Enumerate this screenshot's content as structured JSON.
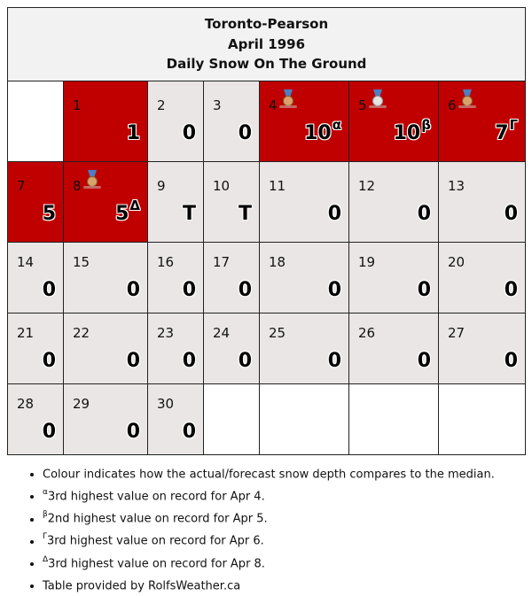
{
  "header": {
    "station": "Toronto-Pearson",
    "period": "April 1996",
    "subtitle": "Daily Snow On The Ground"
  },
  "colors": {
    "above_median": "#c00000",
    "normal": "#ebe6e6",
    "header_bg": "#f2f2f2"
  },
  "days": [
    {
      "day": "1",
      "value": "1",
      "sup": "",
      "red": true,
      "medal": ""
    },
    {
      "day": "2",
      "value": "0",
      "sup": "",
      "red": false,
      "medal": ""
    },
    {
      "day": "3",
      "value": "0",
      "sup": "",
      "red": false,
      "medal": ""
    },
    {
      "day": "4",
      "value": "10",
      "sup": "α",
      "red": true,
      "medal": "bronze-medal-icon"
    },
    {
      "day": "5",
      "value": "10",
      "sup": "β",
      "red": true,
      "medal": "silver-medal-icon"
    },
    {
      "day": "6",
      "value": "7",
      "sup": "Γ",
      "red": true,
      "medal": "bronze-medal-icon"
    },
    {
      "day": "7",
      "value": "5",
      "sup": "",
      "red": true,
      "medal": ""
    },
    {
      "day": "8",
      "value": "5",
      "sup": "Δ",
      "red": true,
      "medal": "bronze-medal-icon"
    },
    {
      "day": "9",
      "value": "T",
      "sup": "",
      "red": false,
      "medal": ""
    },
    {
      "day": "10",
      "value": "T",
      "sup": "",
      "red": false,
      "medal": ""
    },
    {
      "day": "11",
      "value": "0",
      "sup": "",
      "red": false,
      "medal": ""
    },
    {
      "day": "12",
      "value": "0",
      "sup": "",
      "red": false,
      "medal": ""
    },
    {
      "day": "13",
      "value": "0",
      "sup": "",
      "red": false,
      "medal": ""
    },
    {
      "day": "14",
      "value": "0",
      "sup": "",
      "red": false,
      "medal": ""
    },
    {
      "day": "15",
      "value": "0",
      "sup": "",
      "red": false,
      "medal": ""
    },
    {
      "day": "16",
      "value": "0",
      "sup": "",
      "red": false,
      "medal": ""
    },
    {
      "day": "17",
      "value": "0",
      "sup": "",
      "red": false,
      "medal": ""
    },
    {
      "day": "18",
      "value": "0",
      "sup": "",
      "red": false,
      "medal": ""
    },
    {
      "day": "19",
      "value": "0",
      "sup": "",
      "red": false,
      "medal": ""
    },
    {
      "day": "20",
      "value": "0",
      "sup": "",
      "red": false,
      "medal": ""
    },
    {
      "day": "21",
      "value": "0",
      "sup": "",
      "red": false,
      "medal": ""
    },
    {
      "day": "22",
      "value": "0",
      "sup": "",
      "red": false,
      "medal": ""
    },
    {
      "day": "23",
      "value": "0",
      "sup": "",
      "red": false,
      "medal": ""
    },
    {
      "day": "24",
      "value": "0",
      "sup": "",
      "red": false,
      "medal": ""
    },
    {
      "day": "25",
      "value": "0",
      "sup": "",
      "red": false,
      "medal": ""
    },
    {
      "day": "26",
      "value": "0",
      "sup": "",
      "red": false,
      "medal": ""
    },
    {
      "day": "27",
      "value": "0",
      "sup": "",
      "red": false,
      "medal": ""
    },
    {
      "day": "28",
      "value": "0",
      "sup": "",
      "red": false,
      "medal": ""
    },
    {
      "day": "29",
      "value": "0",
      "sup": "",
      "red": false,
      "medal": ""
    },
    {
      "day": "30",
      "value": "0",
      "sup": "",
      "red": false,
      "medal": ""
    }
  ],
  "notes": [
    {
      "sup": "",
      "text": "Colour indicates how the actual/forecast snow depth compares to the median."
    },
    {
      "sup": "α",
      "text": "3rd highest value on record for Apr 4."
    },
    {
      "sup": "β",
      "text": "2nd highest value on record for Apr 5."
    },
    {
      "sup": "Γ",
      "text": "3rd highest value on record for Apr 6."
    },
    {
      "sup": "Δ",
      "text": "3rd highest value on record for Apr 8."
    },
    {
      "sup": "",
      "text": "Table provided by RolfsWeather.ca"
    }
  ]
}
